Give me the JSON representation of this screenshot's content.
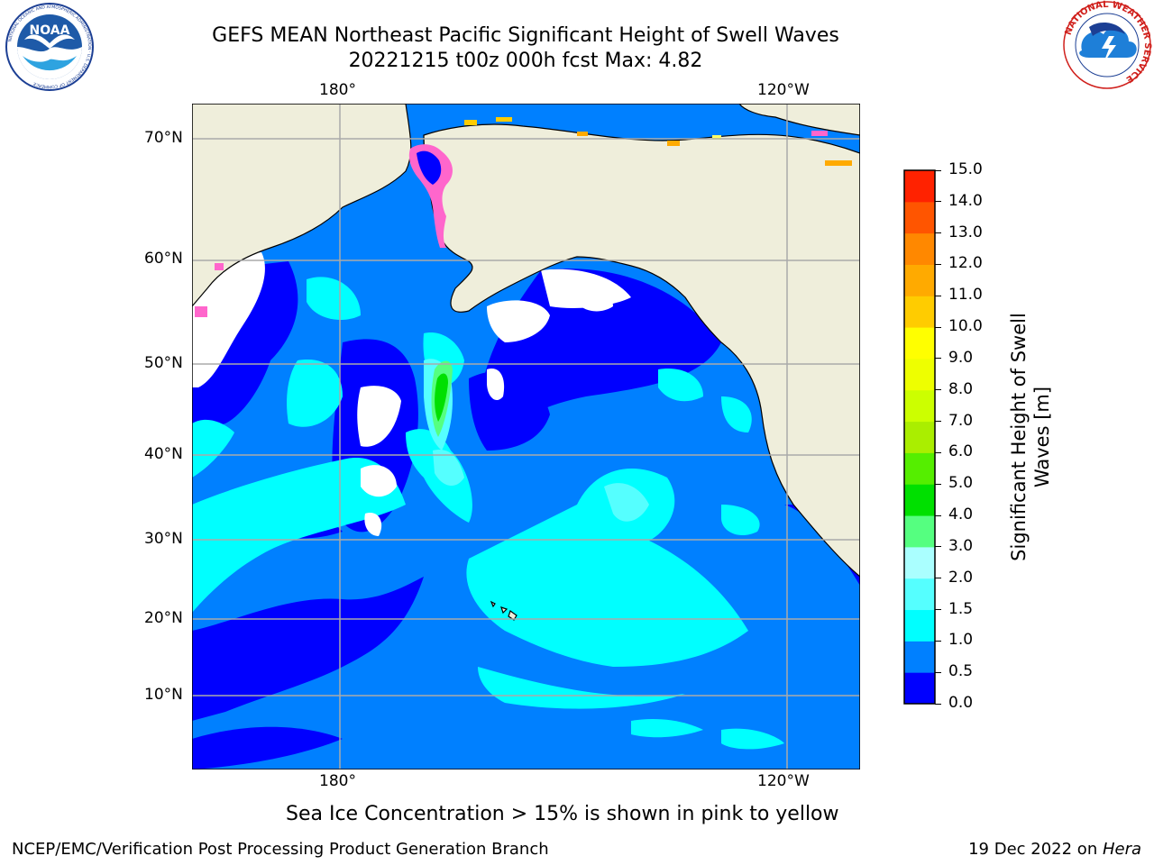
{
  "header": {
    "title_line1": "GEFS MEAN Northeast Pacific Significant Height of Swell Waves",
    "title_line2": "20221215 t00z 000h fcst   Max: 4.82"
  },
  "logos": {
    "left": {
      "icon": "noaa-logo-icon",
      "text": "NOAA",
      "ring_text": "NATIONAL OCEANIC AND ATMOSPHERIC ADMINISTRATION · U.S. DEPARTMENT OF COMMERCE"
    },
    "right": {
      "icon": "nws-logo-icon",
      "ring_text": "NATIONAL WEATHER SERVICE"
    }
  },
  "map": {
    "lon_labels_top": [
      "180°",
      "120°W"
    ],
    "lon_labels_bottom": [
      "180°",
      "120°W"
    ],
    "lat_labels": [
      "70°N",
      "60°N",
      "50°N",
      "40°N",
      "30°N",
      "20°N",
      "10°N"
    ],
    "colors": {
      "ocean_base": "#0080ff",
      "land": "#efeedb",
      "ice": "#ff66cc",
      "grid": "#aaaaaa"
    }
  },
  "colorbar": {
    "label": "Significant Height of Swell Waves [m]",
    "ticks": [
      "0.0",
      "0.5",
      "1.0",
      "1.5",
      "2.0",
      "3.0",
      "4.0",
      "5.0",
      "6.0",
      "7.0",
      "8.0",
      "9.0",
      "10.0",
      "11.0",
      "12.0",
      "13.0",
      "14.0",
      "15.0"
    ],
    "colors": [
      "#0000ff",
      "#0080ff",
      "#00ffff",
      "#55ffff",
      "#aaffff",
      "#55ff80",
      "#00e000",
      "#55ee00",
      "#aaee00",
      "#ccff00",
      "#eeff00",
      "#ffff00",
      "#ffcc00",
      "#ffaa00",
      "#ff8800",
      "#ff5500",
      "#ff2200",
      "#ff0000"
    ]
  },
  "caption": "Sea Ice Concentration > 15% is shown in pink to yellow",
  "footer": {
    "left": "NCEP/EMC/Verification Post Processing Product Generation Branch",
    "right_prefix": "19 Dec 2022 on ",
    "right_host": "Hera"
  }
}
